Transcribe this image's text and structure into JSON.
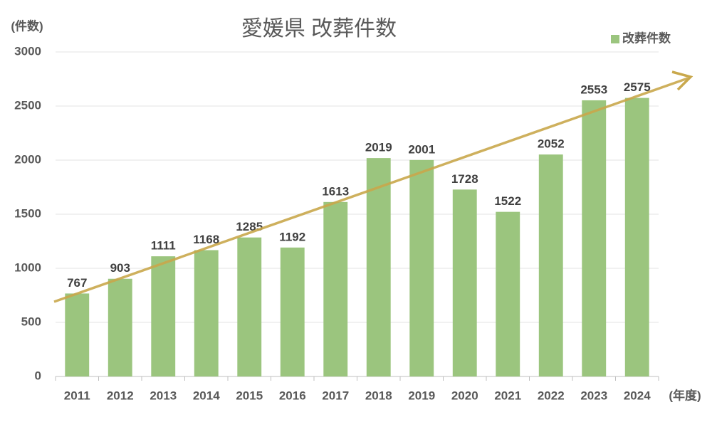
{
  "chart_data": {
    "type": "bar",
    "title": "愛媛県 改葬件数",
    "y_label": "(件数)",
    "x_label": "(年度)",
    "categories": [
      "2011",
      "2012",
      "2013",
      "2014",
      "2015",
      "2016",
      "2017",
      "2018",
      "2019",
      "2020",
      "2021",
      "2022",
      "2023",
      "2024"
    ],
    "series": [
      {
        "name": "改葬件数",
        "color": "#9bc57e",
        "values": [
          767,
          903,
          1111,
          1168,
          1285,
          1192,
          1613,
          2019,
          2001,
          1728,
          1522,
          2052,
          2553,
          2575
        ]
      }
    ],
    "ylim": [
      0,
      3000
    ],
    "yticks": [
      0,
      500,
      1000,
      1500,
      2000,
      2500,
      3000
    ],
    "grid": true,
    "legend": "top-right",
    "data_labels": true
  }
}
